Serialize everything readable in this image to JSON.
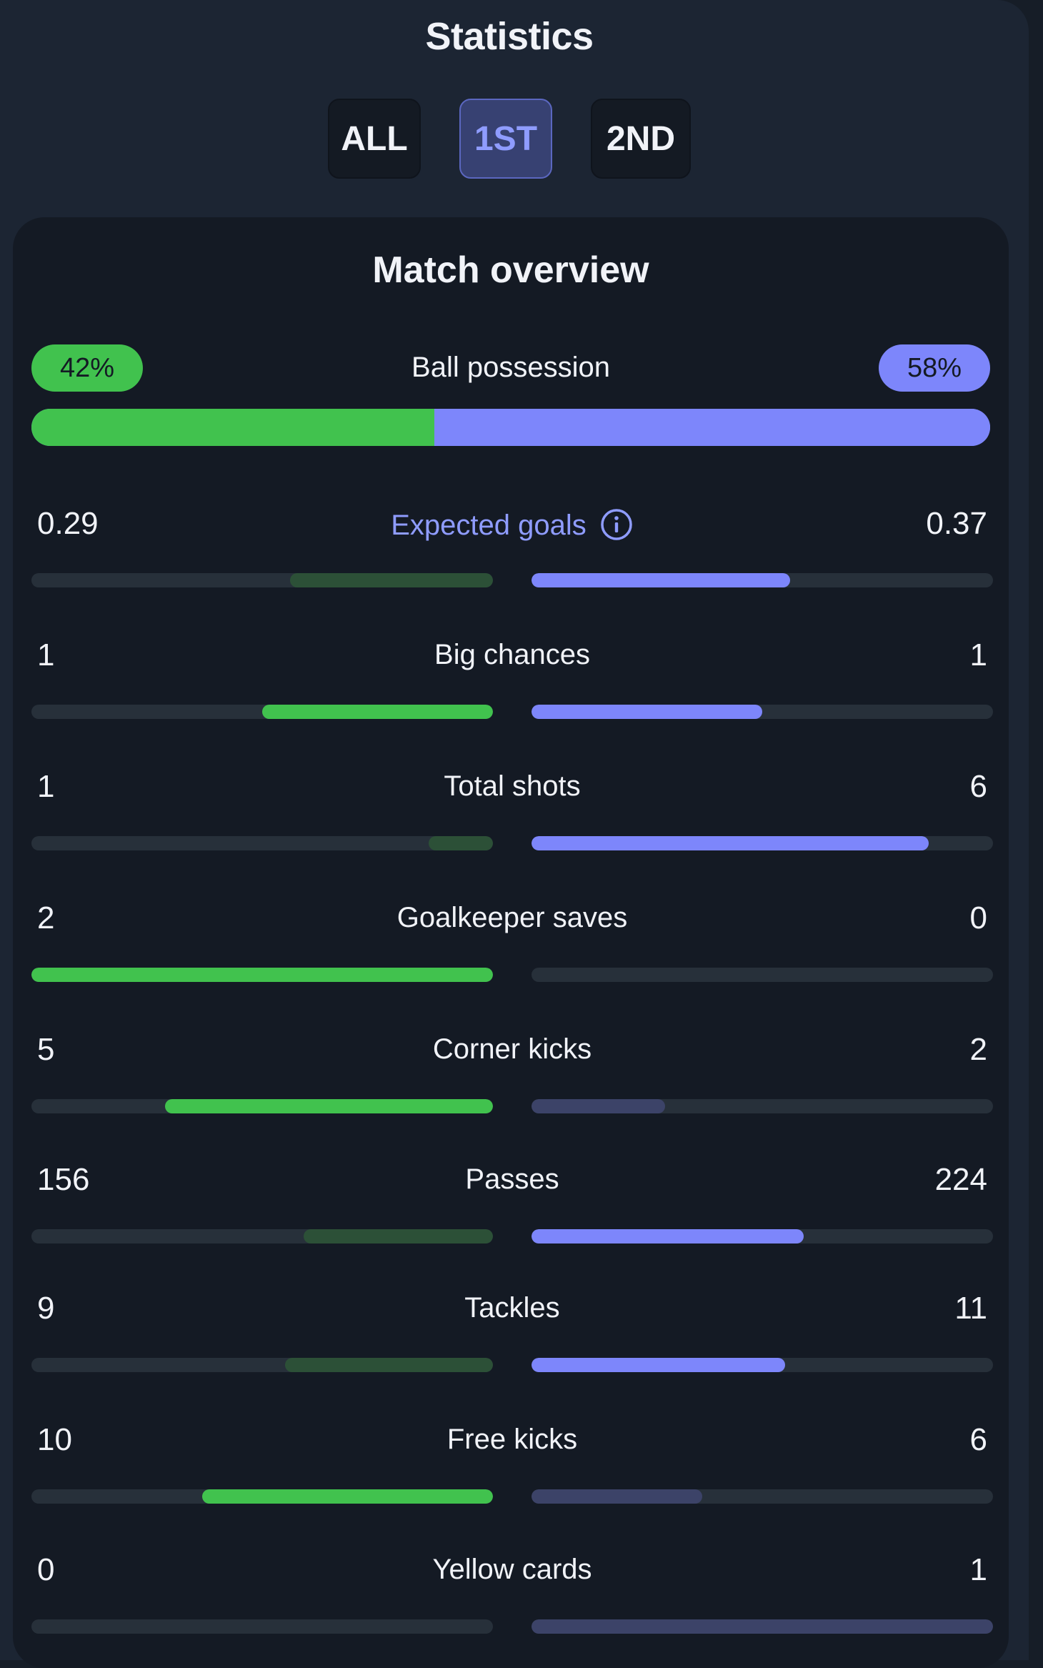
{
  "header": {
    "title": "Statistics",
    "tabs": [
      {
        "label": "ALL",
        "selected": false
      },
      {
        "label": "1ST",
        "selected": true
      },
      {
        "label": "2ND",
        "selected": false
      }
    ]
  },
  "overview": {
    "title": "Match overview",
    "possession": {
      "label": "Ball possession",
      "home": "42%",
      "away": "58%",
      "home_fraction": 0.42
    },
    "stats": [
      {
        "label": "Expected goals",
        "home": "0.29",
        "away": "0.37",
        "has_info_icon": true,
        "home_fraction": 0.44,
        "away_fraction": 0.56,
        "home_strong": false,
        "away_strong": true
      },
      {
        "label": "Big chances",
        "home": "1",
        "away": "1",
        "home_fraction": 0.5,
        "away_fraction": 0.5,
        "home_strong": true,
        "away_strong": true
      },
      {
        "label": "Total shots",
        "home": "1",
        "away": "6",
        "home_fraction": 0.14,
        "away_fraction": 0.86,
        "home_strong": false,
        "away_strong": true
      },
      {
        "label": "Goalkeeper saves",
        "home": "2",
        "away": "0",
        "home_fraction": 1.0,
        "away_fraction": 0.0,
        "home_strong": true,
        "away_strong": false
      },
      {
        "label": "Corner kicks",
        "home": "5",
        "away": "2",
        "home_fraction": 0.71,
        "away_fraction": 0.29,
        "home_strong": true,
        "away_strong": false
      },
      {
        "label": "Passes",
        "home": "156",
        "away": "224",
        "home_fraction": 0.41,
        "away_fraction": 0.59,
        "home_strong": false,
        "away_strong": true
      },
      {
        "label": "Tackles",
        "home": "9",
        "away": "11",
        "home_fraction": 0.45,
        "away_fraction": 0.55,
        "home_strong": false,
        "away_strong": true
      },
      {
        "label": "Free kicks",
        "home": "10",
        "away": "6",
        "home_fraction": 0.63,
        "away_fraction": 0.37,
        "home_strong": true,
        "away_strong": false
      },
      {
        "label": "Yellow cards",
        "home": "0",
        "away": "1",
        "home_fraction": 0.0,
        "away_fraction": 1.0,
        "home_strong": false,
        "away_strong": false
      }
    ]
  },
  "colors": {
    "home": "#41c24e",
    "away": "#7d86fb",
    "home_weak": "#2c5037",
    "away_weak": "#3c4368",
    "accent": "#8f9cff"
  }
}
